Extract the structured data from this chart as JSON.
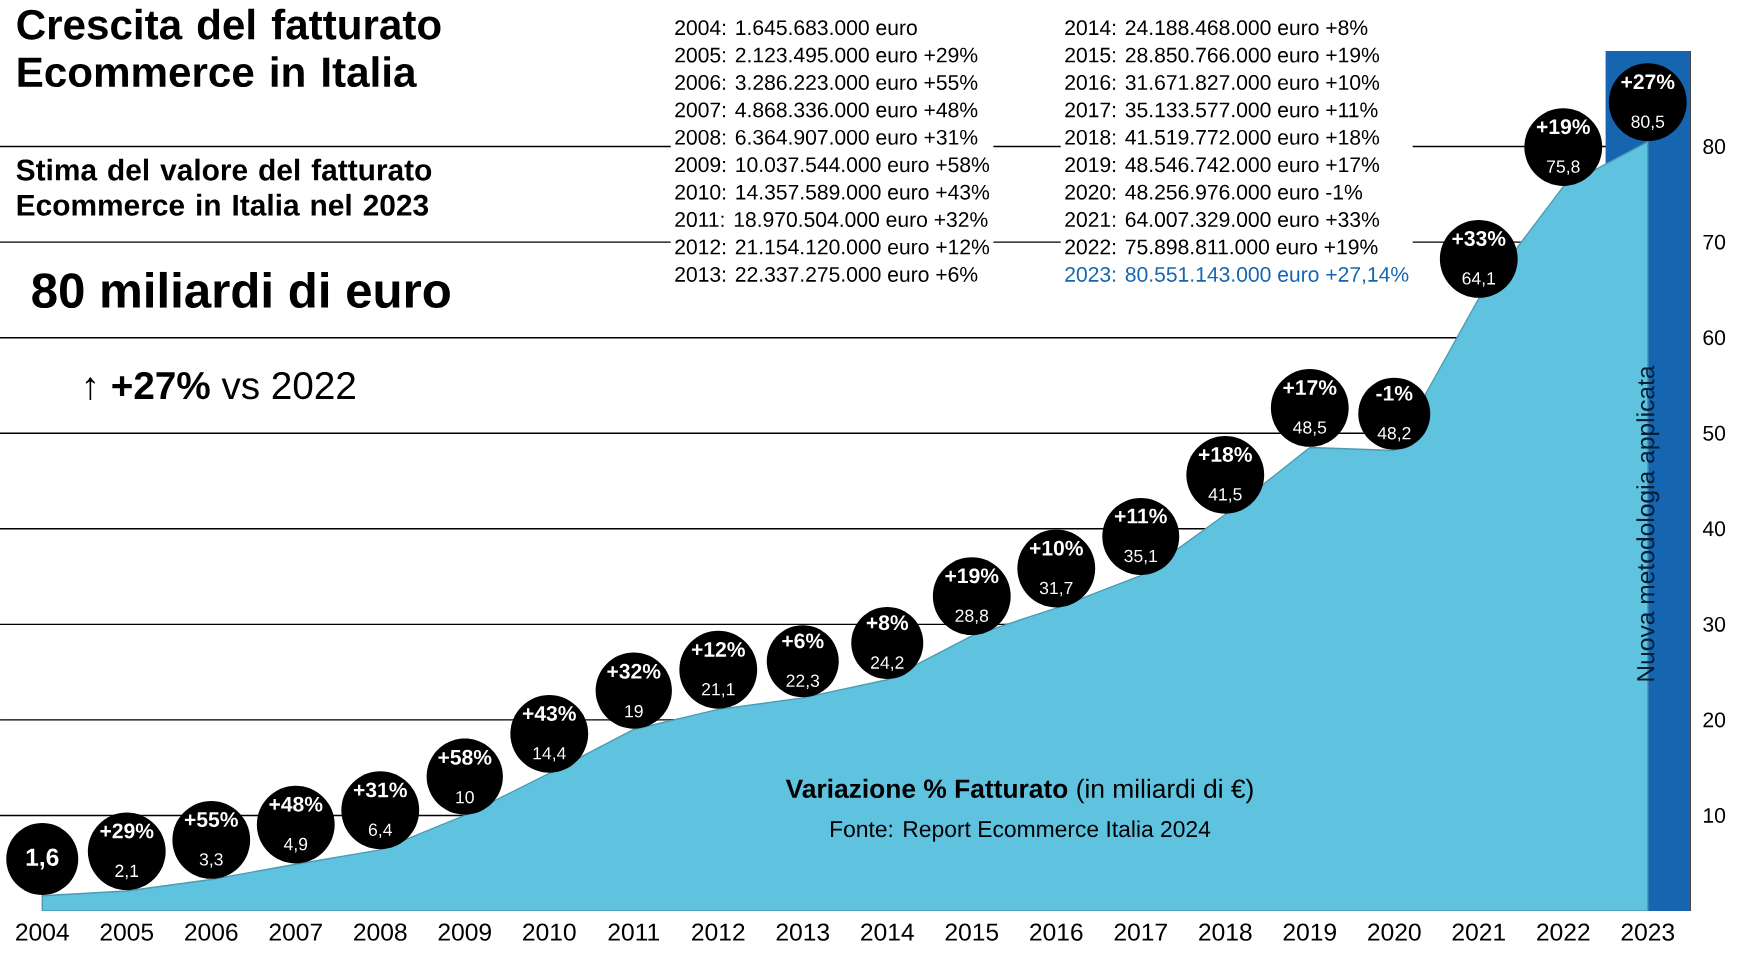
{
  "chart_data": {
    "type": "area",
    "title": "Crescita del fatturato Ecommerce in Italia",
    "subtitle": "Stima del valore del fatturato Ecommerce in Italia nel 2023",
    "categories": [
      "2004",
      "2005",
      "2006",
      "2007",
      "2008",
      "2009",
      "2010",
      "2011",
      "2012",
      "2013",
      "2014",
      "2015",
      "2016",
      "2017",
      "2018",
      "2019",
      "2020",
      "2021",
      "2022",
      "2023"
    ],
    "values": [
      1.6,
      2.1,
      3.3,
      4.9,
      6.4,
      10,
      14.4,
      19,
      21.1,
      22.3,
      24.2,
      28.8,
      31.7,
      35.1,
      41.5,
      48.5,
      48.2,
      64.1,
      75.8,
      80.5
    ],
    "value_labels": [
      "1,6",
      "2,1",
      "3,3",
      "4,9",
      "6,4",
      "10",
      "14,4",
      "19",
      "21,1",
      "22,3",
      "24,2",
      "28,8",
      "31,7",
      "35,1",
      "41,5",
      "48,5",
      "48,2",
      "64,1",
      "75,8",
      "80,5"
    ],
    "color": "#5fc3e0",
    "ylim": [
      0,
      90
    ],
    "yticks": [
      10,
      20,
      30,
      40,
      50,
      60,
      70,
      80
    ],
    "grid": "y",
    "bands": [
      {
        "axis": "x",
        "from": "2023",
        "to": "2023",
        "label": "Nuova metodologia applicata",
        "color": "#1565b0"
      }
    ],
    "annotations": [
      "80 miliardi di euro",
      "↑ **+27%** vs 2022",
      "**Variazione % Fatturato** (in miliardi di €)",
      "Fonte: Report Ecommerce Italia 2024",
      "2004: 1.645.683.000 euro",
      "2005: 2.123.495.000 euro +29%",
      "2006: 3.286.223.000 euro +55%",
      "2007: 4.868.336.000 euro +48%",
      "2008: 6.364.907.000 euro +31%",
      "2009: 10.037.544.000 euro +58%",
      "2010: 14.357.589.000 euro +43%",
      "2011: 18.970.504.000 euro +32%",
      "2012: 21.154.120.000 euro +12%",
      "2013: 22.337.275.000 euro +6%",
      "2014: 24.188.468.000 euro +8%",
      "2015: 28.850.766.000 euro +19%",
      "2016: 31.671.827.000 euro +10%",
      "2017: 35.133.577.000 euro +11%",
      "2018: 41.519.772.000 euro +18%",
      "2019: 48.546.742.000 euro +17%",
      "2020: 48.256.976.000 euro -1%",
      "2021: 64.007.329.000 euro +33%",
      "2022: 75.898.811.000 euro +19%",
      "2023: 80.551.143.000 euro +27,14%",
      {
        "text": "+29%",
        "x": "2005",
        "y": 2.1
      },
      {
        "text": "+55%",
        "x": "2006",
        "y": 3.3
      },
      {
        "text": "+48%",
        "x": "2007",
        "y": 4.9
      },
      {
        "text": "+31%",
        "x": "2008",
        "y": 6.4
      },
      {
        "text": "+58%",
        "x": "2009",
        "y": 10
      },
      {
        "text": "+43%",
        "x": "2010",
        "y": 14.4
      },
      {
        "text": "+32%",
        "x": "2011",
        "y": 19
      },
      {
        "text": "+12%",
        "x": "2012",
        "y": 21.1
      },
      {
        "text": "+6%",
        "x": "2013",
        "y": 22.3
      },
      {
        "text": "+8%",
        "x": "2014",
        "y": 24.2
      },
      {
        "text": "+19%",
        "x": "2015",
        "y": 28.8
      },
      {
        "text": "+10%",
        "x": "2016",
        "y": 31.7
      },
      {
        "text": "+11%",
        "x": "2017",
        "y": 35.1
      },
      {
        "text": "+18%",
        "x": "2018",
        "y": 41.5
      },
      {
        "text": "+17%",
        "x": "2019",
        "y": 48.5
      },
      {
        "text": "-1%",
        "x": "2020",
        "y": 48.2
      },
      {
        "text": "+33%",
        "x": "2021",
        "y": 64.1
      },
      {
        "text": "+19%",
        "x": "2022",
        "y": 75.8
      },
      {
        "text": "+27%",
        "x": "2023",
        "y": 80.5
      }
    ]
  }
}
